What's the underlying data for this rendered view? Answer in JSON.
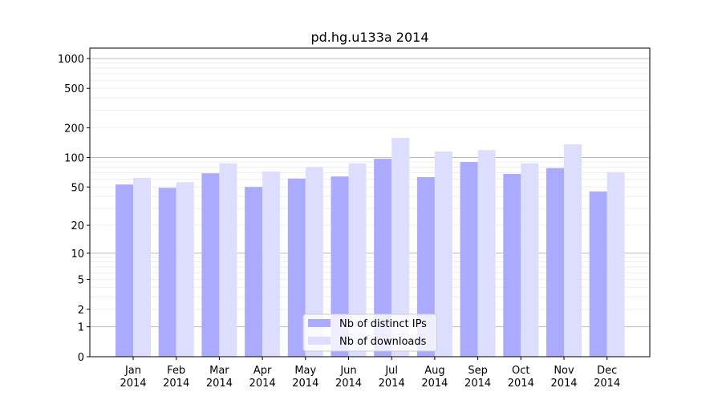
{
  "chart_data": {
    "type": "bar",
    "title": "pd.hg.u133a 2014",
    "xlabel": "",
    "ylabel": "",
    "yscale": "symlog",
    "ylim": [
      0,
      1300
    ],
    "yticks": [
      0,
      1,
      2,
      5,
      10,
      20,
      50,
      100,
      200,
      500,
      1000
    ],
    "grid": true,
    "legend_position": "bottom-center",
    "categories": [
      "Jan\n2014",
      "Feb\n2014",
      "Mar\n2014",
      "Apr\n2014",
      "May\n2014",
      "Jun\n2014",
      "Jul\n2014",
      "Aug\n2014",
      "Sep\n2014",
      "Oct\n2014",
      "Nov\n2014",
      "Dec\n2014"
    ],
    "series": [
      {
        "name": "Nb of distinct IPs",
        "color": "#aaaaff",
        "values": [
          53,
          49,
          69,
          50,
          61,
          64,
          97,
          63,
          90,
          68,
          78,
          45
        ]
      },
      {
        "name": "Nb of downloads",
        "color": "#ddddff",
        "values": [
          62,
          56,
          87,
          72,
          80,
          87,
          158,
          115,
          119,
          87,
          136,
          71
        ]
      }
    ]
  }
}
